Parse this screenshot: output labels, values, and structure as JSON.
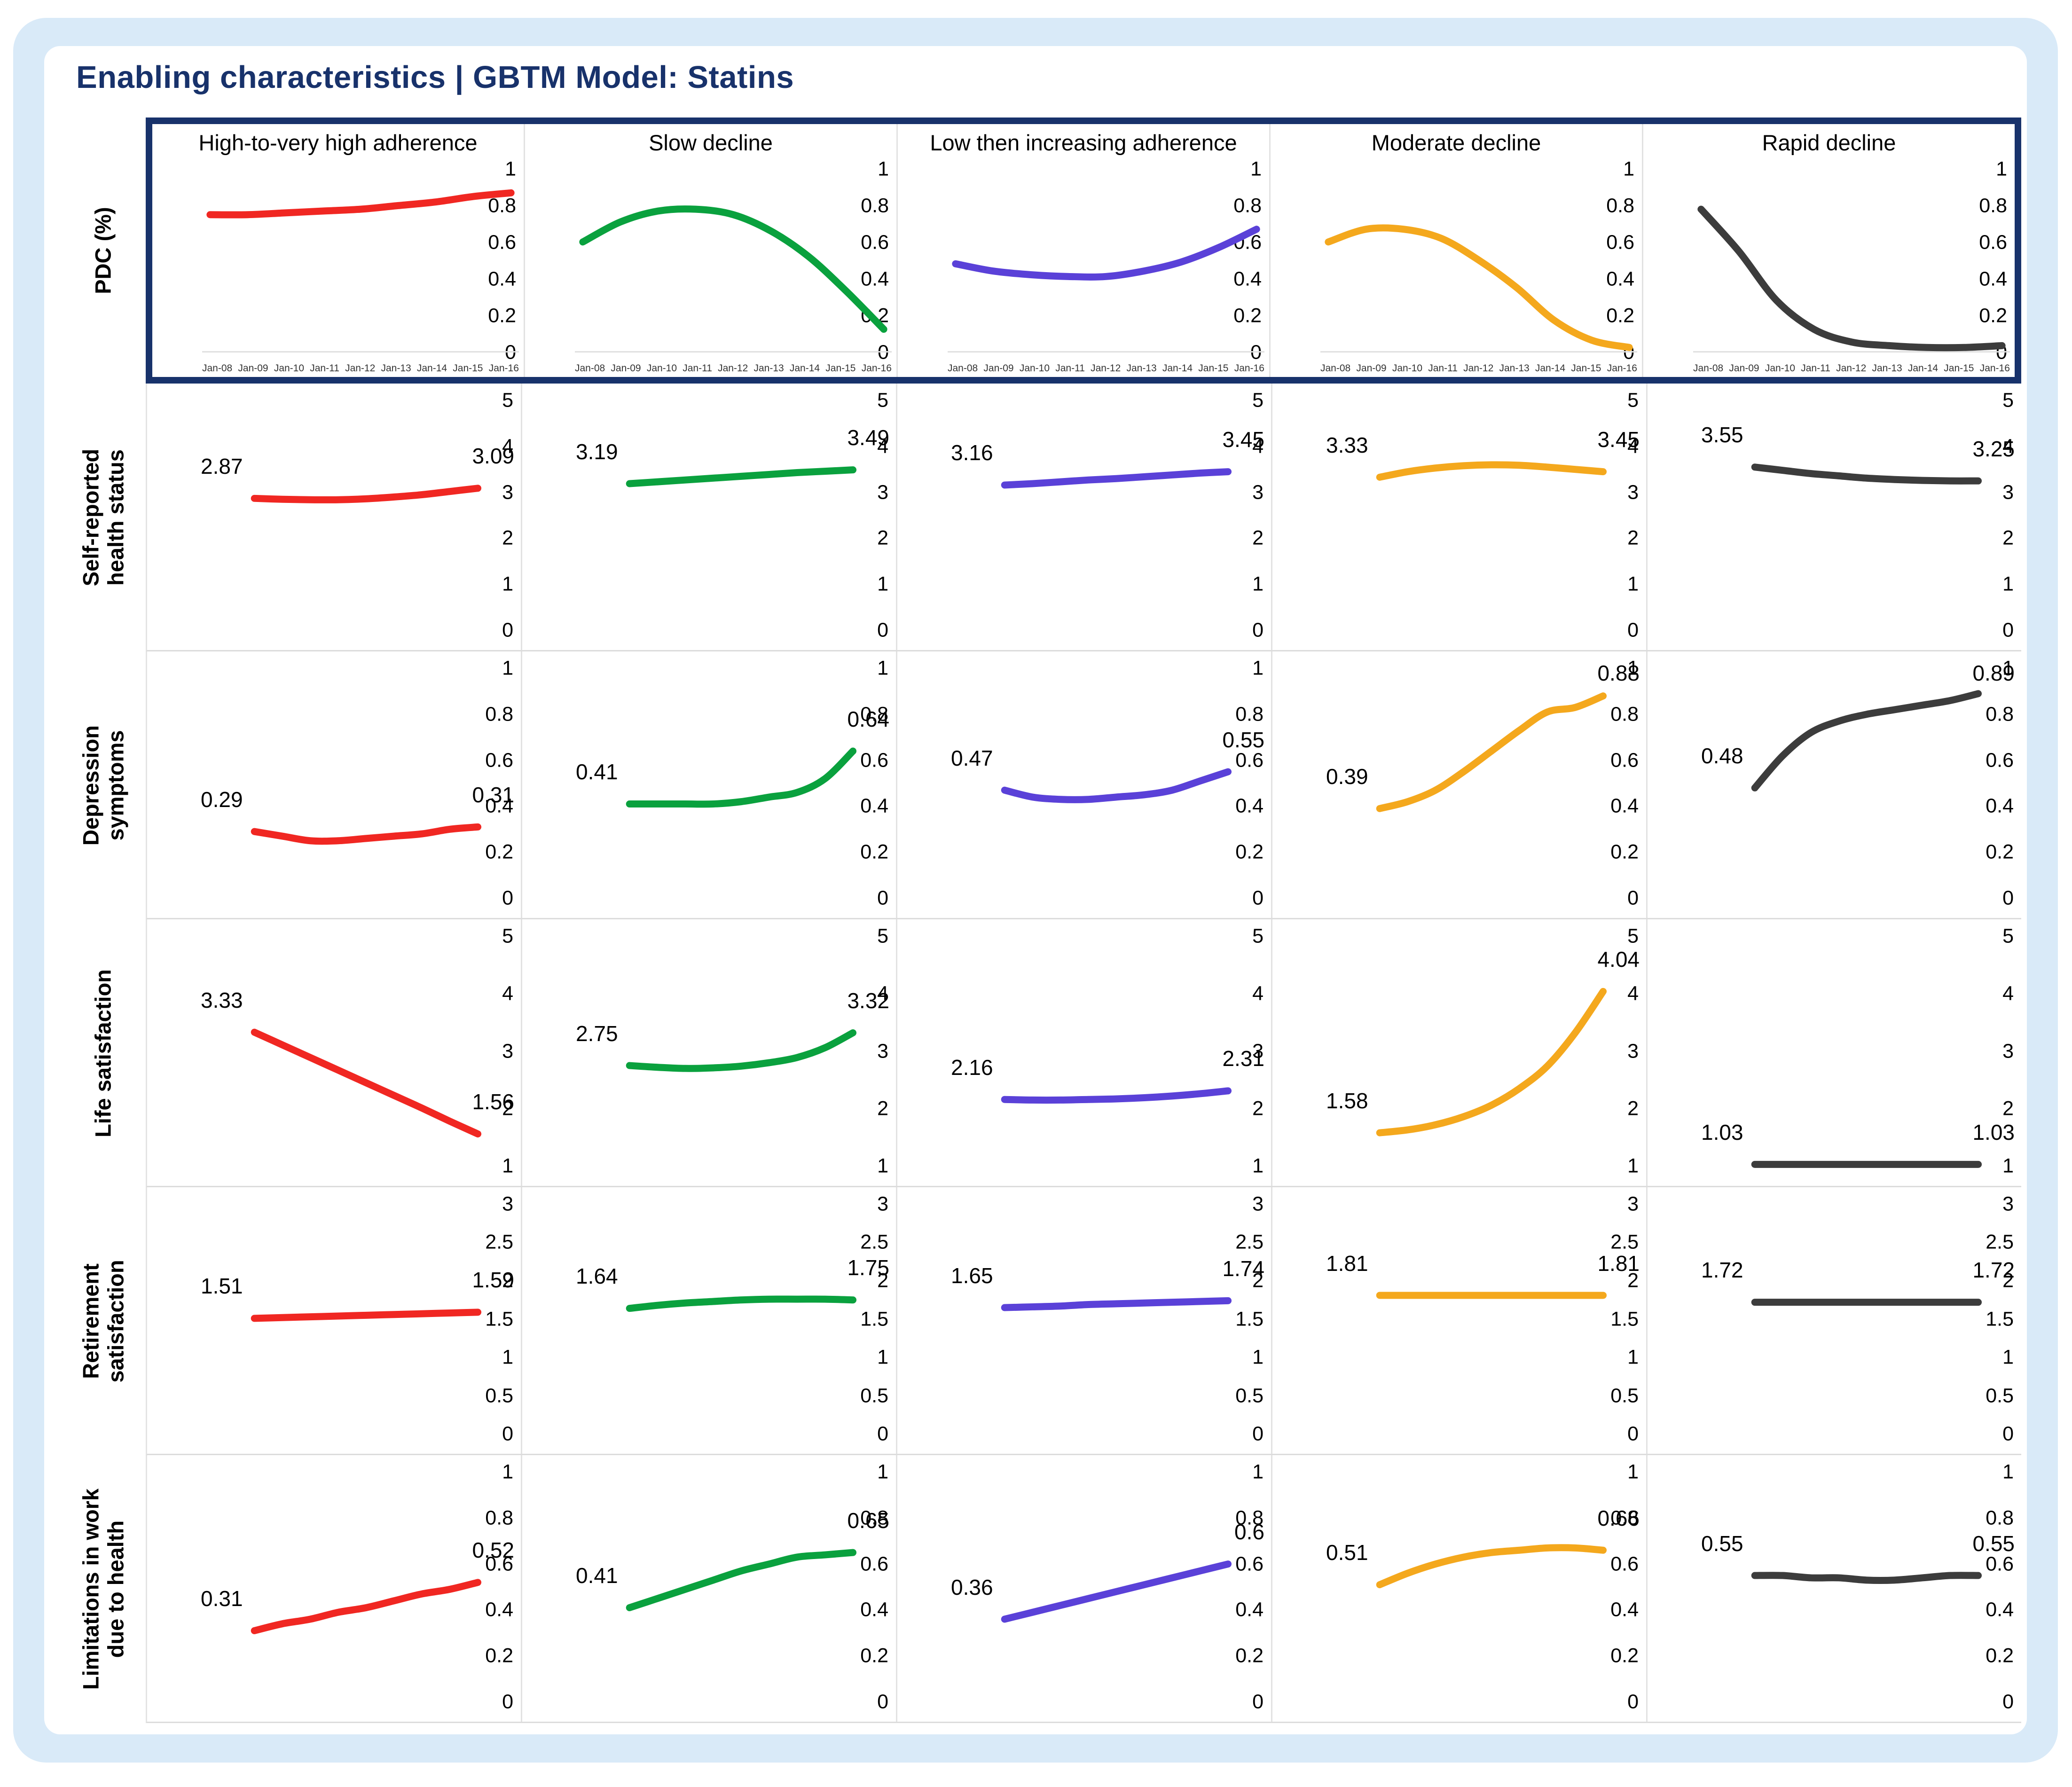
{
  "title": "Enabling characteristics | GBTM Model: Statins",
  "colors": {
    "red": "#f02722",
    "green": "#0aa13e",
    "purple": "#5a41d8",
    "orange": "#f4a81d",
    "black": "#3c3c3c",
    "navy_border": "#18326b",
    "frame_blue": "#d9eaf8"
  },
  "columns": [
    {
      "id": "red",
      "label": "High-to-very high adherence"
    },
    {
      "id": "green",
      "label": "Slow decline"
    },
    {
      "id": "purple",
      "label": "Low then increasing adherence"
    },
    {
      "id": "orange",
      "label": "Moderate decline"
    },
    {
      "id": "black",
      "label": "Rapid decline"
    }
  ],
  "x_categories": [
    "Jan-08",
    "Jan-09",
    "Jan-10",
    "Jan-11",
    "Jan-12",
    "Jan-13",
    "Jan-14",
    "Jan-15",
    "Jan-16"
  ],
  "chart_data": [
    {
      "type": "line",
      "title": "PDC (%)",
      "ylabel": "PDC (%)",
      "ylim": [
        0,
        1
      ],
      "yticks": [
        "1",
        "0.8",
        "0.6",
        "0.4",
        "0.2",
        "0"
      ],
      "show_x_labels": true,
      "grid": false,
      "legend": "none",
      "series": [
        {
          "name": "High-to-very high adherence",
          "color_id": "red",
          "values": [
            0.75,
            0.75,
            0.76,
            0.77,
            0.78,
            0.8,
            0.82,
            0.85,
            0.87
          ]
        },
        {
          "name": "Slow decline",
          "color_id": "green",
          "values": [
            0.6,
            0.71,
            0.77,
            0.78,
            0.75,
            0.66,
            0.52,
            0.33,
            0.12
          ]
        },
        {
          "name": "Low then increasing adherence",
          "color_id": "purple",
          "values": [
            0.48,
            0.44,
            0.42,
            0.41,
            0.41,
            0.44,
            0.49,
            0.57,
            0.67
          ]
        },
        {
          "name": "Moderate decline",
          "color_id": "orange",
          "values": [
            0.6,
            0.67,
            0.67,
            0.62,
            0.5,
            0.35,
            0.17,
            0.06,
            0.02
          ]
        },
        {
          "name": "Rapid decline",
          "color_id": "black",
          "values": [
            0.78,
            0.55,
            0.28,
            0.12,
            0.05,
            0.03,
            0.02,
            0.02,
            0.03
          ]
        }
      ]
    },
    {
      "type": "line",
      "title": "Self-reported health status",
      "ylabel": "Self-reported\nhealth status",
      "ylim": [
        0,
        5
      ],
      "yticks": [
        "5",
        "4",
        "3",
        "2",
        "1",
        "0"
      ],
      "show_x_labels": false,
      "grid": false,
      "legend": "none",
      "series": [
        {
          "name": "High-to-very high adherence",
          "color_id": "red",
          "start_label": "2.87",
          "end_label": "3.09",
          "values": [
            2.87,
            2.85,
            2.84,
            2.84,
            2.86,
            2.9,
            2.95,
            3.02,
            3.09
          ]
        },
        {
          "name": "Slow decline",
          "color_id": "green",
          "start_label": "3.19",
          "end_label": "3.49",
          "values": [
            3.19,
            3.23,
            3.27,
            3.31,
            3.35,
            3.39,
            3.43,
            3.46,
            3.49
          ]
        },
        {
          "name": "Low then increasing adherence",
          "color_id": "purple",
          "start_label": "3.16",
          "end_label": "3.45",
          "values": [
            3.16,
            3.19,
            3.23,
            3.27,
            3.3,
            3.34,
            3.38,
            3.42,
            3.45
          ]
        },
        {
          "name": "Moderate decline",
          "color_id": "orange",
          "start_label": "3.33",
          "end_label": "3.45",
          "values": [
            3.33,
            3.45,
            3.53,
            3.58,
            3.6,
            3.59,
            3.55,
            3.5,
            3.45
          ]
        },
        {
          "name": "Rapid decline",
          "color_id": "black",
          "start_label": "3.55",
          "end_label": "3.25",
          "values": [
            3.55,
            3.48,
            3.41,
            3.36,
            3.31,
            3.28,
            3.26,
            3.25,
            3.25
          ]
        }
      ]
    },
    {
      "type": "line",
      "title": "Depression symptoms",
      "ylabel": "Depression\nsymptoms",
      "ylim": [
        0,
        1
      ],
      "yticks": [
        "1",
        "0.8",
        "0.6",
        "0.4",
        "0.2",
        "0"
      ],
      "show_x_labels": false,
      "grid": false,
      "legend": "none",
      "series": [
        {
          "name": "High-to-very high adherence",
          "color_id": "red",
          "start_label": "0.29",
          "end_label": "0.31",
          "values": [
            0.29,
            0.27,
            0.25,
            0.25,
            0.26,
            0.27,
            0.28,
            0.3,
            0.31
          ]
        },
        {
          "name": "Slow decline",
          "color_id": "green",
          "start_label": "0.41",
          "end_label": "0.64",
          "values": [
            0.41,
            0.41,
            0.41,
            0.41,
            0.42,
            0.44,
            0.46,
            0.52,
            0.64
          ]
        },
        {
          "name": "Low then increasing adherence",
          "color_id": "purple",
          "start_label": "0.47",
          "end_label": "0.55",
          "values": [
            0.47,
            0.44,
            0.43,
            0.43,
            0.44,
            0.45,
            0.47,
            0.51,
            0.55
          ]
        },
        {
          "name": "Moderate decline",
          "color_id": "orange",
          "start_label": "0.39",
          "end_label": "0.88",
          "values": [
            0.39,
            0.42,
            0.47,
            0.55,
            0.64,
            0.73,
            0.81,
            0.83,
            0.88
          ]
        },
        {
          "name": "Rapid decline",
          "color_id": "black",
          "start_label": "0.48",
          "end_label": "0.89",
          "values": [
            0.48,
            0.62,
            0.72,
            0.77,
            0.8,
            0.82,
            0.84,
            0.86,
            0.89
          ]
        }
      ]
    },
    {
      "type": "line",
      "title": "Life satisfaction",
      "ylabel": "Life satisfaction",
      "ylim": [
        1,
        5
      ],
      "yticks": [
        "5",
        "4",
        "3",
        "2",
        "1"
      ],
      "show_x_labels": false,
      "grid": false,
      "legend": "none",
      "series": [
        {
          "name": "High-to-very high adherence",
          "color_id": "red",
          "start_label": "3.33",
          "end_label": "1.56",
          "values": [
            3.33,
            3.11,
            2.89,
            2.67,
            2.45,
            2.23,
            2.01,
            1.78,
            1.56
          ]
        },
        {
          "name": "Slow decline",
          "color_id": "green",
          "start_label": "2.75",
          "end_label": "3.32",
          "values": [
            2.75,
            2.72,
            2.7,
            2.71,
            2.74,
            2.8,
            2.89,
            3.06,
            3.32
          ]
        },
        {
          "name": "Low then increasing adherence",
          "color_id": "purple",
          "start_label": "2.16",
          "end_label": "2.31",
          "values": [
            2.16,
            2.15,
            2.15,
            2.16,
            2.17,
            2.19,
            2.22,
            2.26,
            2.31
          ]
        },
        {
          "name": "Moderate decline",
          "color_id": "orange",
          "start_label": "1.58",
          "end_label": "4.04",
          "values": [
            1.58,
            1.63,
            1.72,
            1.86,
            2.06,
            2.35,
            2.74,
            3.32,
            4.04
          ]
        },
        {
          "name": "Rapid decline",
          "color_id": "black",
          "start_label": "1.03",
          "end_label": "1.03",
          "values": [
            1.03,
            1.03,
            1.03,
            1.03,
            1.03,
            1.03,
            1.03,
            1.03,
            1.03
          ]
        }
      ]
    },
    {
      "type": "line",
      "title": "Retirement satisfaction",
      "ylabel": "Retirement\nsatisfaction",
      "ylim": [
        0,
        3
      ],
      "yticks": [
        "3",
        "2.5",
        "2",
        "1.5",
        "1",
        "0.5",
        "0"
      ],
      "show_x_labels": false,
      "grid": false,
      "legend": "none",
      "series": [
        {
          "name": "High-to-very high adherence",
          "color_id": "red",
          "start_label": "1.51",
          "end_label": "1.59",
          "values": [
            1.51,
            1.52,
            1.53,
            1.54,
            1.55,
            1.56,
            1.57,
            1.58,
            1.59
          ]
        },
        {
          "name": "Slow decline",
          "color_id": "green",
          "start_label": "1.64",
          "end_label": "1.75",
          "values": [
            1.64,
            1.68,
            1.71,
            1.73,
            1.75,
            1.76,
            1.76,
            1.76,
            1.75
          ]
        },
        {
          "name": "Low then increasing adherence",
          "color_id": "purple",
          "start_label": "1.65",
          "end_label": "1.74",
          "values": [
            1.65,
            1.66,
            1.67,
            1.69,
            1.7,
            1.71,
            1.72,
            1.73,
            1.74
          ]
        },
        {
          "name": "Moderate decline",
          "color_id": "orange",
          "start_label": "1.81",
          "end_label": "1.81",
          "values": [
            1.81,
            1.81,
            1.81,
            1.81,
            1.81,
            1.81,
            1.81,
            1.81,
            1.81
          ]
        },
        {
          "name": "Rapid decline",
          "color_id": "black",
          "start_label": "1.72",
          "end_label": "1.72",
          "values": [
            1.72,
            1.72,
            1.72,
            1.72,
            1.72,
            1.72,
            1.72,
            1.72,
            1.72
          ]
        }
      ]
    },
    {
      "type": "line",
      "title": "Limitations in work due to health",
      "ylabel": "Limitations in work\ndue to health",
      "ylim": [
        0,
        1
      ],
      "yticks": [
        "1",
        "0.8",
        "0.6",
        "0.4",
        "0.2",
        "0"
      ],
      "show_x_labels": false,
      "grid": false,
      "legend": "none",
      "series": [
        {
          "name": "High-to-very high adherence",
          "color_id": "red",
          "start_label": "0.31",
          "end_label": "0.52",
          "values": [
            0.31,
            0.34,
            0.36,
            0.39,
            0.41,
            0.44,
            0.47,
            0.49,
            0.52
          ]
        },
        {
          "name": "Slow decline",
          "color_id": "green",
          "start_label": "0.41",
          "end_label": "0.65",
          "values": [
            0.41,
            0.45,
            0.49,
            0.53,
            0.57,
            0.6,
            0.63,
            0.64,
            0.65
          ]
        },
        {
          "name": "Low then increasing adherence",
          "color_id": "purple",
          "start_label": "0.36",
          "end_label": "0.6",
          "values": [
            0.36,
            0.39,
            0.42,
            0.45,
            0.48,
            0.51,
            0.54,
            0.57,
            0.6
          ]
        },
        {
          "name": "Moderate decline",
          "color_id": "orange",
          "start_label": "0.51",
          "end_label": "0.66",
          "values": [
            0.51,
            0.56,
            0.6,
            0.63,
            0.65,
            0.66,
            0.67,
            0.67,
            0.66
          ]
        },
        {
          "name": "Rapid decline",
          "color_id": "black",
          "start_label": "0.55",
          "end_label": "0.55",
          "values": [
            0.55,
            0.55,
            0.54,
            0.54,
            0.53,
            0.53,
            0.54,
            0.55,
            0.55
          ]
        }
      ]
    }
  ]
}
